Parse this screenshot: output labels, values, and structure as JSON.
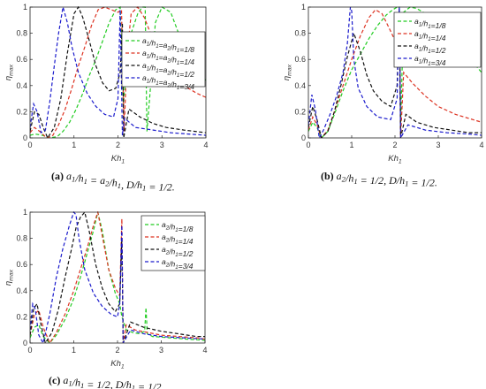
{
  "chart_data": [
    {
      "type": "line",
      "caption_tag": "(a)",
      "caption_text": "a1/h1 = a2/h1, D/h1 = 1/2.",
      "xlabel": "Kh1",
      "ylabel": "ηmax",
      "xlim": [
        0,
        4
      ],
      "ylim": [
        0,
        1
      ],
      "xticks": [
        "0",
        "1",
        "2",
        "3",
        "4"
      ],
      "yticks": [
        "0",
        "0.2",
        "0.4",
        "0.6",
        "0.8",
        "1"
      ],
      "legend_position": "top-right",
      "series": [
        {
          "name": "a1/h1=a2/h1=1/8",
          "color": "#22cc22",
          "x": [
            0,
            0.12,
            0.28,
            0.45,
            0.62,
            0.75,
            0.9,
            1.05,
            1.2,
            1.35,
            1.5,
            1.65,
            1.8,
            1.95,
            2.05,
            2.12,
            2.2,
            2.3,
            2.45,
            2.55,
            2.62,
            2.66,
            2.72,
            2.85,
            3.0,
            3.2,
            3.4,
            3.6,
            3.8,
            4.0
          ],
          "y": [
            0.02,
            0.03,
            0.02,
            0.0,
            0.01,
            0.05,
            0.12,
            0.22,
            0.34,
            0.48,
            0.6,
            0.74,
            0.88,
            0.98,
            1.0,
            0.25,
            0.55,
            0.8,
            0.95,
            1.0,
            1.0,
            0.05,
            0.3,
            0.88,
            1.0,
            0.96,
            0.78,
            0.6,
            0.5,
            0.44
          ]
        },
        {
          "name": "a1/h1=a2/h1=1/4",
          "color": "#dd3322",
          "x": [
            0,
            0.1,
            0.22,
            0.38,
            0.52,
            0.65,
            0.8,
            0.95,
            1.1,
            1.25,
            1.4,
            1.55,
            1.7,
            1.85,
            2.0,
            2.08,
            2.14,
            2.2,
            2.3,
            2.45,
            2.6,
            2.8,
            3.0,
            3.2,
            3.5,
            3.8,
            4.0
          ],
          "y": [
            0.04,
            0.08,
            0.05,
            0.0,
            0.02,
            0.1,
            0.22,
            0.38,
            0.55,
            0.7,
            0.86,
            0.98,
            1.0,
            0.98,
            0.96,
            0.98,
            0.05,
            0.6,
            0.95,
            1.0,
            0.92,
            0.75,
            0.6,
            0.5,
            0.4,
            0.34,
            0.31
          ]
        },
        {
          "name": "a1/h1=a2/h1=1/2",
          "color": "#111111",
          "x": [
            0,
            0.1,
            0.2,
            0.3,
            0.4,
            0.55,
            0.7,
            0.85,
            1.0,
            1.1,
            1.2,
            1.35,
            1.5,
            1.65,
            1.8,
            1.95,
            2.05,
            2.1,
            2.13,
            2.25,
            2.5,
            2.8,
            3.1,
            3.5,
            4.0
          ],
          "y": [
            0.05,
            0.2,
            0.18,
            0.08,
            0.0,
            0.08,
            0.3,
            0.65,
            0.95,
            1.0,
            0.92,
            0.74,
            0.55,
            0.42,
            0.36,
            0.38,
            0.5,
            0.88,
            0.0,
            0.22,
            0.16,
            0.11,
            0.08,
            0.06,
            0.04
          ]
        },
        {
          "name": "a1/h1=a2/h1=3/4",
          "color": "#1a1acc",
          "x": [
            0,
            0.08,
            0.16,
            0.25,
            0.35,
            0.45,
            0.55,
            0.65,
            0.75,
            0.85,
            0.95,
            1.1,
            1.3,
            1.5,
            1.7,
            1.9,
            2.0,
            2.05,
            2.1,
            2.15,
            2.4,
            2.8,
            3.2,
            3.6,
            4.0
          ],
          "y": [
            0.08,
            0.26,
            0.2,
            0.04,
            0.06,
            0.28,
            0.55,
            0.8,
            1.0,
            0.88,
            0.7,
            0.5,
            0.34,
            0.24,
            0.18,
            0.16,
            0.3,
            0.98,
            0.02,
            0.15,
            0.08,
            0.06,
            0.04,
            0.03,
            0.02
          ]
        }
      ]
    },
    {
      "type": "line",
      "caption_tag": "(b)",
      "caption_text": "a2/h1 = 1/2, D/h1 = 1/2.",
      "xlabel": "Kh1",
      "ylabel": "ηmax",
      "xlim": [
        0,
        4
      ],
      "ylim": [
        0,
        1
      ],
      "xticks": [
        "0",
        "1",
        "2",
        "3",
        "4"
      ],
      "yticks": [
        "0",
        "0.2",
        "0.4",
        "0.6",
        "0.8",
        "1"
      ],
      "legend_position": "top-right",
      "series": [
        {
          "name": "a1/h1=1/8",
          "color": "#22cc22",
          "x": [
            0,
            0.1,
            0.2,
            0.3,
            0.45,
            0.6,
            0.8,
            1.0,
            1.2,
            1.4,
            1.6,
            1.8,
            1.95,
            2.05,
            2.1,
            2.13,
            2.2,
            2.35,
            2.5,
            2.65,
            2.8,
            3.0,
            3.3,
            3.6,
            3.85,
            4.0
          ],
          "y": [
            0.05,
            0.12,
            0.08,
            0.0,
            0.05,
            0.18,
            0.36,
            0.52,
            0.64,
            0.76,
            0.86,
            0.94,
            0.98,
            1.0,
            1.0,
            0.1,
            0.96,
            1.0,
            0.99,
            0.96,
            0.92,
            0.86,
            0.76,
            0.65,
            0.56,
            0.5
          ]
        },
        {
          "name": "a1/h1=1/4",
          "color": "#dd3322",
          "x": [
            0,
            0.1,
            0.2,
            0.3,
            0.45,
            0.6,
            0.8,
            1.0,
            1.2,
            1.4,
            1.55,
            1.7,
            1.85,
            1.98,
            2.05,
            2.1,
            2.13,
            2.2,
            2.4,
            2.7,
            3.0,
            3.4,
            3.8,
            4.0
          ],
          "y": [
            0.06,
            0.16,
            0.1,
            0.0,
            0.06,
            0.2,
            0.4,
            0.6,
            0.78,
            0.92,
            0.98,
            0.95,
            0.85,
            0.76,
            0.8,
            0.95,
            0.0,
            0.5,
            0.42,
            0.32,
            0.24,
            0.18,
            0.14,
            0.12
          ]
        },
        {
          "name": "a1/h1=1/2",
          "color": "#111111",
          "x": [
            0,
            0.1,
            0.2,
            0.3,
            0.45,
            0.6,
            0.75,
            0.9,
            1.05,
            1.2,
            1.35,
            1.5,
            1.7,
            1.9,
            2.05,
            2.1,
            2.13,
            2.25,
            2.5,
            2.9,
            3.3,
            3.7,
            4.0
          ],
          "y": [
            0.08,
            0.24,
            0.14,
            0.0,
            0.05,
            0.2,
            0.4,
            0.62,
            0.8,
            0.66,
            0.48,
            0.36,
            0.28,
            0.24,
            0.4,
            0.99,
            0.0,
            0.18,
            0.12,
            0.08,
            0.06,
            0.04,
            0.04
          ]
        },
        {
          "name": "a1/h1=3/4",
          "color": "#1a1acc",
          "x": [
            0,
            0.08,
            0.16,
            0.25,
            0.35,
            0.5,
            0.65,
            0.8,
            0.9,
            0.97,
            1.0,
            1.05,
            1.15,
            1.35,
            1.6,
            1.9,
            2.05,
            2.1,
            2.13,
            2.3,
            2.7,
            3.2,
            3.7,
            4.0
          ],
          "y": [
            0.1,
            0.33,
            0.22,
            0.0,
            0.06,
            0.18,
            0.32,
            0.5,
            0.72,
            1.0,
            0.97,
            0.6,
            0.38,
            0.24,
            0.16,
            0.14,
            0.3,
            1.0,
            0.0,
            0.1,
            0.06,
            0.04,
            0.03,
            0.02
          ]
        }
      ]
    },
    {
      "type": "line",
      "caption_tag": "(c)",
      "caption_text": "a1/h1 = 1/2, D/h1 = 1/2.",
      "xlabel": "Kh1",
      "ylabel": "ηmax",
      "xlim": [
        0,
        4
      ],
      "ylim": [
        0,
        1
      ],
      "xticks": [
        "0",
        "1",
        "2",
        "3",
        "4"
      ],
      "yticks": [
        "0",
        "0.2",
        "0.4",
        "0.6",
        "0.8",
        "1"
      ],
      "legend_position": "top-right",
      "series": [
        {
          "name": "a2/h1=1/8",
          "color": "#22cc22",
          "x": [
            0,
            0.1,
            0.2,
            0.3,
            0.45,
            0.6,
            0.8,
            1.0,
            1.15,
            1.3,
            1.45,
            1.55,
            1.65,
            1.8,
            1.95,
            2.05,
            2.1,
            2.2,
            2.35,
            2.5,
            2.62,
            2.65,
            2.68,
            2.8,
            3.2,
            3.6,
            4.0
          ],
          "y": [
            0.04,
            0.12,
            0.14,
            0.05,
            0.0,
            0.06,
            0.18,
            0.34,
            0.5,
            0.68,
            0.86,
            1.0,
            0.86,
            0.56,
            0.38,
            0.3,
            0.2,
            0.1,
            0.08,
            0.07,
            0.09,
            0.27,
            0.07,
            0.05,
            0.04,
            0.03,
            0.02
          ]
        },
        {
          "name": "a2/h1=1/4",
          "color": "#dd3322",
          "x": [
            0,
            0.1,
            0.2,
            0.3,
            0.45,
            0.6,
            0.8,
            1.0,
            1.15,
            1.3,
            1.45,
            1.55,
            1.65,
            1.8,
            1.95,
            2.05,
            2.1,
            2.13,
            2.2,
            2.4,
            2.7,
            3.0,
            3.4,
            3.8,
            4.0
          ],
          "y": [
            0.06,
            0.22,
            0.25,
            0.12,
            0.0,
            0.08,
            0.22,
            0.4,
            0.56,
            0.72,
            0.9,
            1.0,
            0.82,
            0.56,
            0.42,
            0.36,
            0.95,
            0.0,
            0.14,
            0.1,
            0.08,
            0.06,
            0.05,
            0.04,
            0.03
          ]
        },
        {
          "name": "a2/h1=1/2",
          "color": "#111111",
          "x": [
            0,
            0.08,
            0.16,
            0.25,
            0.35,
            0.5,
            0.65,
            0.8,
            0.95,
            1.05,
            1.15,
            1.25,
            1.35,
            1.5,
            1.65,
            1.8,
            1.95,
            2.05,
            2.1,
            2.13,
            2.3,
            2.6,
            3.0,
            3.4,
            3.8,
            4.0
          ],
          "y": [
            0.06,
            0.26,
            0.3,
            0.14,
            0.0,
            0.08,
            0.26,
            0.5,
            0.72,
            0.88,
            0.96,
            1.0,
            0.86,
            0.6,
            0.42,
            0.3,
            0.24,
            0.3,
            0.8,
            0.0,
            0.16,
            0.12,
            0.09,
            0.07,
            0.05,
            0.05
          ]
        },
        {
          "name": "a2/h1=3/4",
          "color": "#1a1acc",
          "x": [
            0,
            0.06,
            0.12,
            0.2,
            0.3,
            0.45,
            0.6,
            0.75,
            0.9,
            1.0,
            1.05,
            1.12,
            1.25,
            1.45,
            1.65,
            1.85,
            2.0,
            2.05,
            2.1,
            2.13,
            2.3,
            2.6,
            3.0,
            3.5,
            4.0
          ],
          "y": [
            0.1,
            0.3,
            0.26,
            0.06,
            0.0,
            0.22,
            0.5,
            0.72,
            0.9,
            1.0,
            0.98,
            0.8,
            0.56,
            0.38,
            0.28,
            0.22,
            0.2,
            0.3,
            0.9,
            0.0,
            0.1,
            0.07,
            0.05,
            0.04,
            0.03
          ]
        }
      ]
    }
  ]
}
